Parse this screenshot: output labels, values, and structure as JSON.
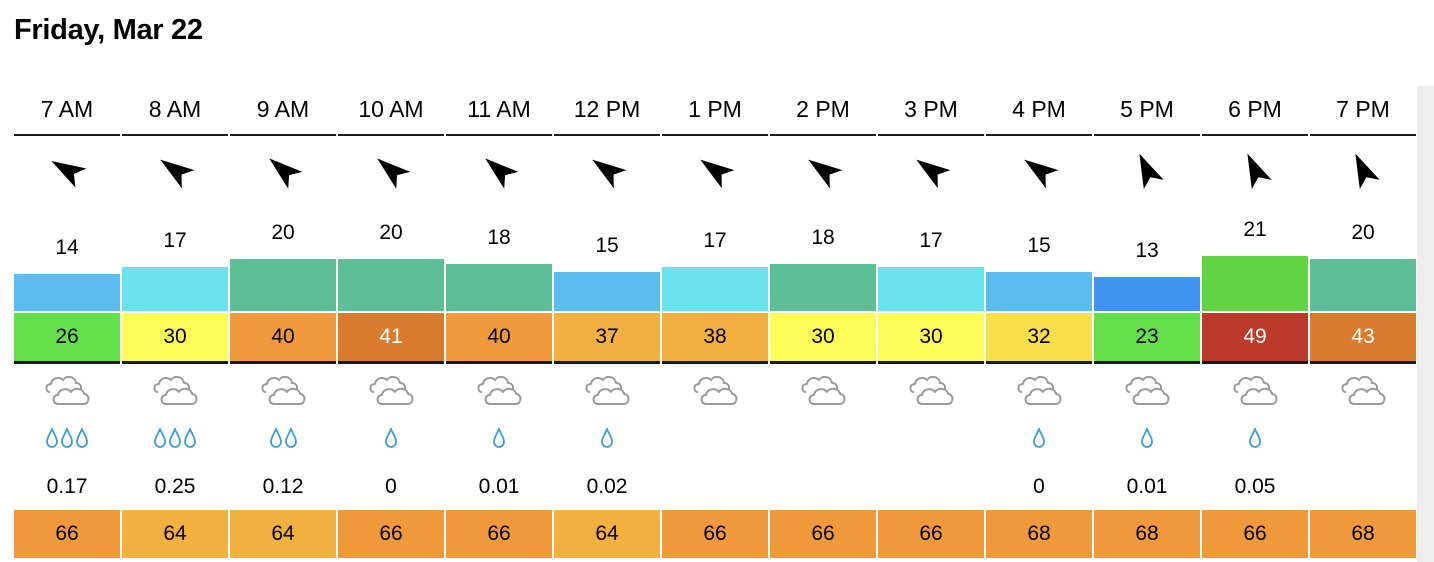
{
  "day": "Friday, Mar 22",
  "colors": {
    "bar_blue": "#5bbcf0",
    "bar_cyan": "#68e2ed",
    "bar_teal": "#5cbf96",
    "bar_deepblue": "#3f93f3",
    "bar_green": "#61d444",
    "gust_green": "#66e04a",
    "gust_yellow": "#fdfb57",
    "gust_yellow2": "#f9e04b",
    "gust_orange": "#f09a3c",
    "gust_orange_dark": "#d97c2e",
    "gust_amber": "#f1b03f",
    "gust_red": "#bb3a2c",
    "temp_orange": "#f09a3c",
    "temp_amber": "#f1b03f",
    "drop_color": "#3a9fd8",
    "cloud_color": "#9a9a9a"
  },
  "hours": [
    {
      "time": "7 AM",
      "wind_dir_deg": 300,
      "speed": "14",
      "bar_color": "#5bbcf0",
      "gust": "26",
      "gust_color": "#66e04a",
      "gust_text": "#000",
      "drops": 3,
      "precip": "0.17",
      "temp": "66",
      "temp_color": "#f09a3c"
    },
    {
      "time": "8 AM",
      "wind_dir_deg": 305,
      "speed": "17",
      "bar_color": "#68e2ed",
      "gust": "30",
      "gust_color": "#fdfb57",
      "gust_text": "#000",
      "drops": 3,
      "precip": "0.25",
      "temp": "64",
      "temp_color": "#f1b03f"
    },
    {
      "time": "9 AM",
      "wind_dir_deg": 310,
      "speed": "20",
      "bar_color": "#5cbf96",
      "gust": "40",
      "gust_color": "#f09a3c",
      "gust_text": "#000",
      "drops": 2,
      "precip": "0.12",
      "temp": "64",
      "temp_color": "#f1b03f"
    },
    {
      "time": "10 AM",
      "wind_dir_deg": 310,
      "speed": "20",
      "bar_color": "#5cbf96",
      "gust": "41",
      "gust_color": "#d97c2e",
      "gust_text": "#fff",
      "drops": 1,
      "precip": "0",
      "temp": "66",
      "temp_color": "#f09a3c"
    },
    {
      "time": "11 AM",
      "wind_dir_deg": 310,
      "speed": "18",
      "bar_color": "#5cbf96",
      "gust": "40",
      "gust_color": "#f09a3c",
      "gust_text": "#000",
      "drops": 1,
      "precip": "0.01",
      "temp": "66",
      "temp_color": "#f09a3c"
    },
    {
      "time": "12 PM",
      "wind_dir_deg": 305,
      "speed": "15",
      "bar_color": "#5bbcf0",
      "gust": "37",
      "gust_color": "#f1b03f",
      "gust_text": "#000",
      "drops": 1,
      "precip": "0.02",
      "temp": "64",
      "temp_color": "#f1b03f"
    },
    {
      "time": "1 PM",
      "wind_dir_deg": 305,
      "speed": "17",
      "bar_color": "#68e2ed",
      "gust": "38",
      "gust_color": "#f1b03f",
      "gust_text": "#000",
      "drops": 0,
      "precip": "",
      "temp": "66",
      "temp_color": "#f09a3c"
    },
    {
      "time": "2 PM",
      "wind_dir_deg": 305,
      "speed": "18",
      "bar_color": "#5cbf96",
      "gust": "30",
      "gust_color": "#fdfb57",
      "gust_text": "#000",
      "drops": 0,
      "precip": "",
      "temp": "66",
      "temp_color": "#f09a3c"
    },
    {
      "time": "3 PM",
      "wind_dir_deg": 305,
      "speed": "17",
      "bar_color": "#68e2ed",
      "gust": "30",
      "gust_color": "#fdfb57",
      "gust_text": "#000",
      "drops": 0,
      "precip": "",
      "temp": "66",
      "temp_color": "#f09a3c"
    },
    {
      "time": "4 PM",
      "wind_dir_deg": 305,
      "speed": "15",
      "bar_color": "#5bbcf0",
      "gust": "32",
      "gust_color": "#f9e04b",
      "gust_text": "#000",
      "drops": 1,
      "precip": "0",
      "temp": "68",
      "temp_color": "#f09a3c"
    },
    {
      "time": "5 PM",
      "wind_dir_deg": 335,
      "speed": "13",
      "bar_color": "#3f93f3",
      "gust": "23",
      "gust_color": "#66e04a",
      "gust_text": "#000",
      "drops": 1,
      "precip": "0.01",
      "temp": "68",
      "temp_color": "#f09a3c"
    },
    {
      "time": "6 PM",
      "wind_dir_deg": 335,
      "speed": "21",
      "bar_color": "#61d444",
      "gust": "49",
      "gust_color": "#bb3a2c",
      "gust_text": "#fff",
      "drops": 1,
      "precip": "0.05",
      "temp": "66",
      "temp_color": "#f09a3c"
    },
    {
      "time": "7 PM",
      "wind_dir_deg": 335,
      "speed": "20",
      "bar_color": "#5cbf96",
      "gust": "43",
      "gust_color": "#d97c2e",
      "gust_text": "#fff",
      "drops": 0,
      "precip": "",
      "temp": "68",
      "temp_color": "#f09a3c"
    }
  ],
  "icons": {
    "wind": "wind-direction-arrow-icon",
    "sky": "cloudy-icon",
    "rain": "raindrop-icon"
  }
}
